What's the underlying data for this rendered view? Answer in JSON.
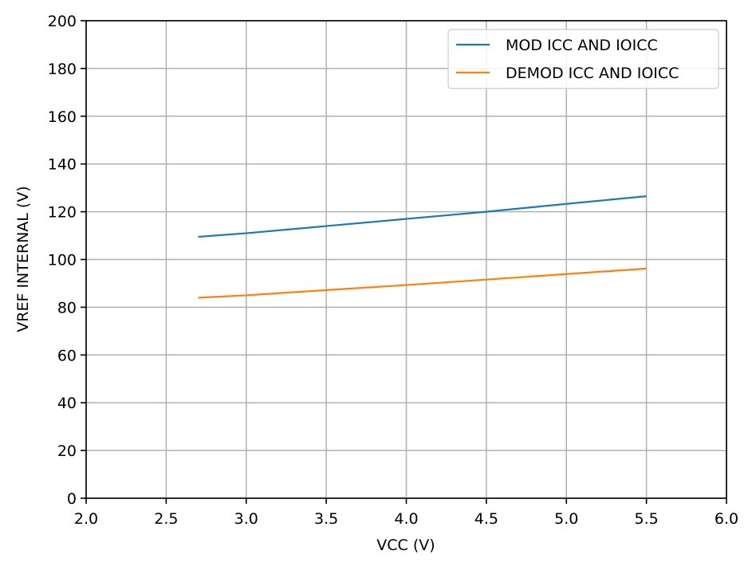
{
  "chart_data": {
    "type": "line",
    "title": "",
    "xlabel": "VCC (V)",
    "ylabel": "VREF INTERNAL (V)",
    "xlim": [
      2.0,
      6.0
    ],
    "ylim": [
      0,
      200
    ],
    "xticks": [
      2.0,
      2.5,
      3.0,
      3.5,
      4.0,
      4.5,
      5.0,
      5.5,
      6.0
    ],
    "xtick_labels": [
      "2.0",
      "2.5",
      "3.0",
      "3.5",
      "4.0",
      "4.5",
      "5.0",
      "5.5",
      "6.0"
    ],
    "yticks": [
      0,
      20,
      40,
      60,
      80,
      100,
      120,
      140,
      160,
      180,
      200
    ],
    "ytick_labels": [
      "0",
      "20",
      "40",
      "60",
      "80",
      "100",
      "120",
      "140",
      "160",
      "180",
      "200"
    ],
    "grid": true,
    "legend_position": "top-right",
    "series": [
      {
        "name": "MOD ICC AND IOICC",
        "color": "#1f77b4",
        "x": [
          2.7,
          3.0,
          3.5,
          4.0,
          4.5,
          5.0,
          5.5
        ],
        "y": [
          109.5,
          111,
          114,
          117,
          120,
          123.3,
          126.5
        ]
      },
      {
        "name": "DEMOD ICC AND IOICC",
        "color": "#ff7f0e",
        "x": [
          2.7,
          3.0,
          3.5,
          4.0,
          4.5,
          5.0,
          5.5
        ],
        "y": [
          84,
          85,
          87.2,
          89.3,
          91.6,
          93.9,
          96.2
        ]
      }
    ]
  }
}
